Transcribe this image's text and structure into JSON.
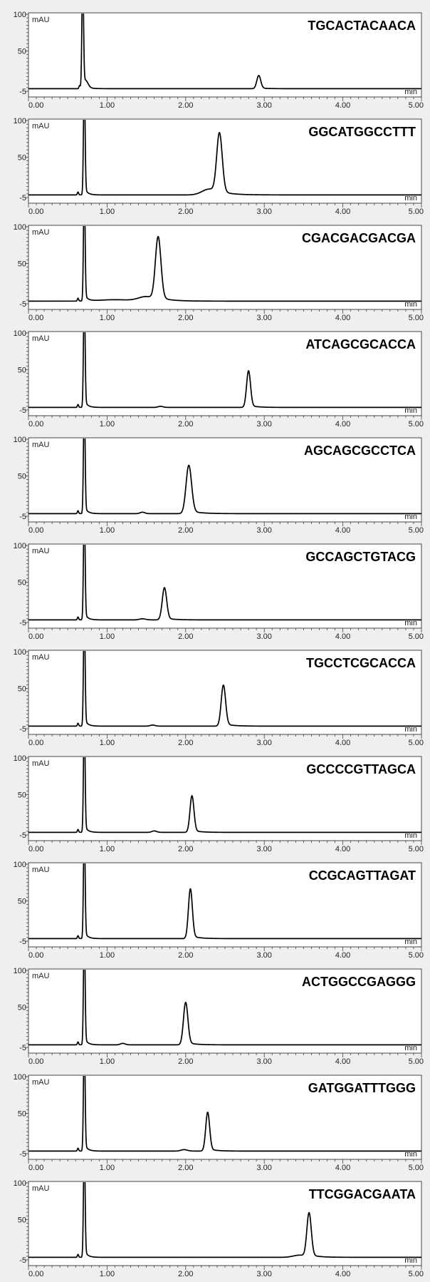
{
  "chart_data": [
    {
      "type": "line",
      "title": "TGCACTACAACA",
      "ylabel": "mAU",
      "xlabel": "min",
      "xlim": [
        0,
        5
      ],
      "ylim": [
        -5,
        100
      ],
      "x_ticks": [
        "0.00",
        "1.00",
        "2.00",
        "3.00",
        "4.00",
        "5.00"
      ],
      "y_ticks": [
        "100",
        "50",
        "-5"
      ],
      "peaks": [
        {
          "rt": 0.65,
          "height": 4,
          "width": 0.008
        },
        {
          "rt": 0.69,
          "height": 160,
          "width": 0.01
        },
        {
          "rt": 0.73,
          "height": 8,
          "width": 0.03
        },
        {
          "rt": 2.93,
          "height": 18,
          "width": 0.025
        }
      ]
    },
    {
      "type": "line",
      "title": "GGCATGGCCTTT",
      "ylabel": "mAU",
      "xlabel": "min",
      "xlim": [
        0,
        5
      ],
      "ylim": [
        -5,
        100
      ],
      "x_ticks": [
        "0.00",
        "1.00",
        "2.00",
        "3.00",
        "4.00",
        "5.00"
      ],
      "y_ticks": [
        "100",
        "50",
        "-5"
      ],
      "peaks": [
        {
          "rt": 0.63,
          "height": 4,
          "width": 0.008
        },
        {
          "rt": 0.71,
          "height": 160,
          "width": 0.01
        },
        {
          "rt": 2.43,
          "height": 82,
          "width": 0.035
        },
        {
          "rt": 2.3,
          "height": 8,
          "width": 0.09
        }
      ]
    },
    {
      "type": "line",
      "title": "CGACGACGACGA",
      "ylabel": "mAU",
      "xlabel": "min",
      "xlim": [
        0,
        5
      ],
      "ylim": [
        -5,
        100
      ],
      "x_ticks": [
        "0.00",
        "1.00",
        "2.00",
        "3.00",
        "4.00",
        "5.00"
      ],
      "y_ticks": [
        "100",
        "50",
        "-5"
      ],
      "peaks": [
        {
          "rt": 0.63,
          "height": 4,
          "width": 0.008
        },
        {
          "rt": 0.71,
          "height": 160,
          "width": 0.01
        },
        {
          "rt": 1.65,
          "height": 86,
          "width": 0.035
        },
        {
          "rt": 1.5,
          "height": 6,
          "width": 0.1
        },
        {
          "rt": 1.1,
          "height": 2,
          "width": 0.2
        }
      ]
    },
    {
      "type": "line",
      "title": "ATCAGCGCACCA",
      "ylabel": "mAU",
      "xlabel": "min",
      "xlim": [
        0,
        5
      ],
      "ylim": [
        -5,
        100
      ],
      "x_ticks": [
        "0.00",
        "1.00",
        "2.00",
        "3.00",
        "4.00",
        "5.00"
      ],
      "y_ticks": [
        "100",
        "50",
        "-5"
      ],
      "peaks": [
        {
          "rt": 0.63,
          "height": 4,
          "width": 0.008
        },
        {
          "rt": 0.71,
          "height": 160,
          "width": 0.01
        },
        {
          "rt": 2.8,
          "height": 50,
          "width": 0.025
        },
        {
          "rt": 1.68,
          "height": 1.5,
          "width": 0.03
        }
      ]
    },
    {
      "type": "line",
      "title": "AGCAGCGCCTCA",
      "ylabel": "mAU",
      "xlabel": "min",
      "xlim": [
        0,
        5
      ],
      "ylim": [
        -5,
        100
      ],
      "x_ticks": [
        "0.00",
        "1.00",
        "2.00",
        "3.00",
        "4.00",
        "5.00"
      ],
      "y_ticks": [
        "100",
        "50",
        "-5"
      ],
      "peaks": [
        {
          "rt": 0.63,
          "height": 4,
          "width": 0.008
        },
        {
          "rt": 0.71,
          "height": 160,
          "width": 0.01
        },
        {
          "rt": 2.04,
          "height": 66,
          "width": 0.035
        },
        {
          "rt": 1.45,
          "height": 2,
          "width": 0.03
        }
      ]
    },
    {
      "type": "line",
      "title": "GCCAGCTGTACG",
      "ylabel": "mAU",
      "xlabel": "min",
      "xlim": [
        0,
        5
      ],
      "ylim": [
        -5,
        100
      ],
      "x_ticks": [
        "0.00",
        "1.00",
        "2.00",
        "3.00",
        "4.00",
        "5.00"
      ],
      "y_ticks": [
        "100",
        "50",
        "-5"
      ],
      "peaks": [
        {
          "rt": 0.63,
          "height": 4,
          "width": 0.008
        },
        {
          "rt": 0.71,
          "height": 160,
          "width": 0.01
        },
        {
          "rt": 1.73,
          "height": 44,
          "width": 0.028
        },
        {
          "rt": 1.45,
          "height": 1.5,
          "width": 0.04
        }
      ]
    },
    {
      "type": "line",
      "title": "TGCCTCGCACCA",
      "ylabel": "mAU",
      "xlabel": "min",
      "xlim": [
        0,
        5
      ],
      "ylim": [
        -5,
        100
      ],
      "x_ticks": [
        "0.00",
        "1.00",
        "2.00",
        "3.00",
        "4.00",
        "5.00"
      ],
      "y_ticks": [
        "100",
        "50",
        "-5"
      ],
      "peaks": [
        {
          "rt": 0.63,
          "height": 4,
          "width": 0.008
        },
        {
          "rt": 0.71,
          "height": 160,
          "width": 0.01
        },
        {
          "rt": 2.48,
          "height": 56,
          "width": 0.028
        },
        {
          "rt": 1.58,
          "height": 1.5,
          "width": 0.03
        }
      ]
    },
    {
      "type": "line",
      "title": "GCCCCGTTAGCA",
      "ylabel": "mAU",
      "xlabel": "min",
      "xlim": [
        0,
        5
      ],
      "ylim": [
        -5,
        100
      ],
      "x_ticks": [
        "0.00",
        "1.00",
        "2.00",
        "3.00",
        "4.00",
        "5.00"
      ],
      "y_ticks": [
        "100",
        "50",
        "-5"
      ],
      "peaks": [
        {
          "rt": 0.63,
          "height": 4,
          "width": 0.008
        },
        {
          "rt": 0.71,
          "height": 160,
          "width": 0.01
        },
        {
          "rt": 2.08,
          "height": 50,
          "width": 0.025
        },
        {
          "rt": 1.6,
          "height": 2,
          "width": 0.03
        }
      ]
    },
    {
      "type": "line",
      "title": "CCGCAGTTAGAT",
      "ylabel": "mAU",
      "xlabel": "min",
      "xlim": [
        0,
        5
      ],
      "ylim": [
        -5,
        100
      ],
      "x_ticks": [
        "0.00",
        "1.00",
        "2.00",
        "3.00",
        "4.00",
        "5.00"
      ],
      "y_ticks": [
        "100",
        "50",
        "-5"
      ],
      "peaks": [
        {
          "rt": 0.63,
          "height": 4,
          "width": 0.008
        },
        {
          "rt": 0.71,
          "height": 160,
          "width": 0.01
        },
        {
          "rt": 2.06,
          "height": 68,
          "width": 0.025
        }
      ]
    },
    {
      "type": "line",
      "title": "ACTGGCCGAGGG",
      "ylabel": "mAU",
      "xlabel": "min",
      "xlim": [
        0,
        5
      ],
      "ylim": [
        -5,
        100
      ],
      "x_ticks": [
        "0.00",
        "1.00",
        "2.00",
        "3.00",
        "4.00",
        "5.00"
      ],
      "y_ticks": [
        "100",
        "50",
        "-5"
      ],
      "peaks": [
        {
          "rt": 0.63,
          "height": 4,
          "width": 0.008
        },
        {
          "rt": 0.71,
          "height": 160,
          "width": 0.01
        },
        {
          "rt": 2.0,
          "height": 58,
          "width": 0.028
        },
        {
          "rt": 1.2,
          "height": 2,
          "width": 0.03
        }
      ]
    },
    {
      "type": "line",
      "title": "GATGGATTTGGG",
      "ylabel": "mAU",
      "xlabel": "min",
      "xlim": [
        0,
        5
      ],
      "ylim": [
        -5,
        100
      ],
      "x_ticks": [
        "0.00",
        "1.00",
        "2.00",
        "3.00",
        "4.00",
        "5.00"
      ],
      "y_ticks": [
        "100",
        "50",
        "-5"
      ],
      "peaks": [
        {
          "rt": 0.63,
          "height": 4,
          "width": 0.008
        },
        {
          "rt": 0.71,
          "height": 160,
          "width": 0.01
        },
        {
          "rt": 2.28,
          "height": 53,
          "width": 0.025
        },
        {
          "rt": 1.98,
          "height": 2,
          "width": 0.04
        }
      ]
    },
    {
      "type": "line",
      "title": "TTCGGACGAATA",
      "ylabel": "mAU",
      "xlabel": "min",
      "xlim": [
        0,
        5
      ],
      "ylim": [
        -5,
        100
      ],
      "x_ticks": [
        "0.00",
        "1.00",
        "2.00",
        "3.00",
        "4.00",
        "5.00"
      ],
      "y_ticks": [
        "100",
        "50",
        "-5"
      ],
      "peaks": [
        {
          "rt": 0.63,
          "height": 4,
          "width": 0.008
        },
        {
          "rt": 0.71,
          "height": 160,
          "width": 0.01
        },
        {
          "rt": 3.57,
          "height": 60,
          "width": 0.028
        },
        {
          "rt": 3.45,
          "height": 3,
          "width": 0.08
        }
      ]
    }
  ]
}
